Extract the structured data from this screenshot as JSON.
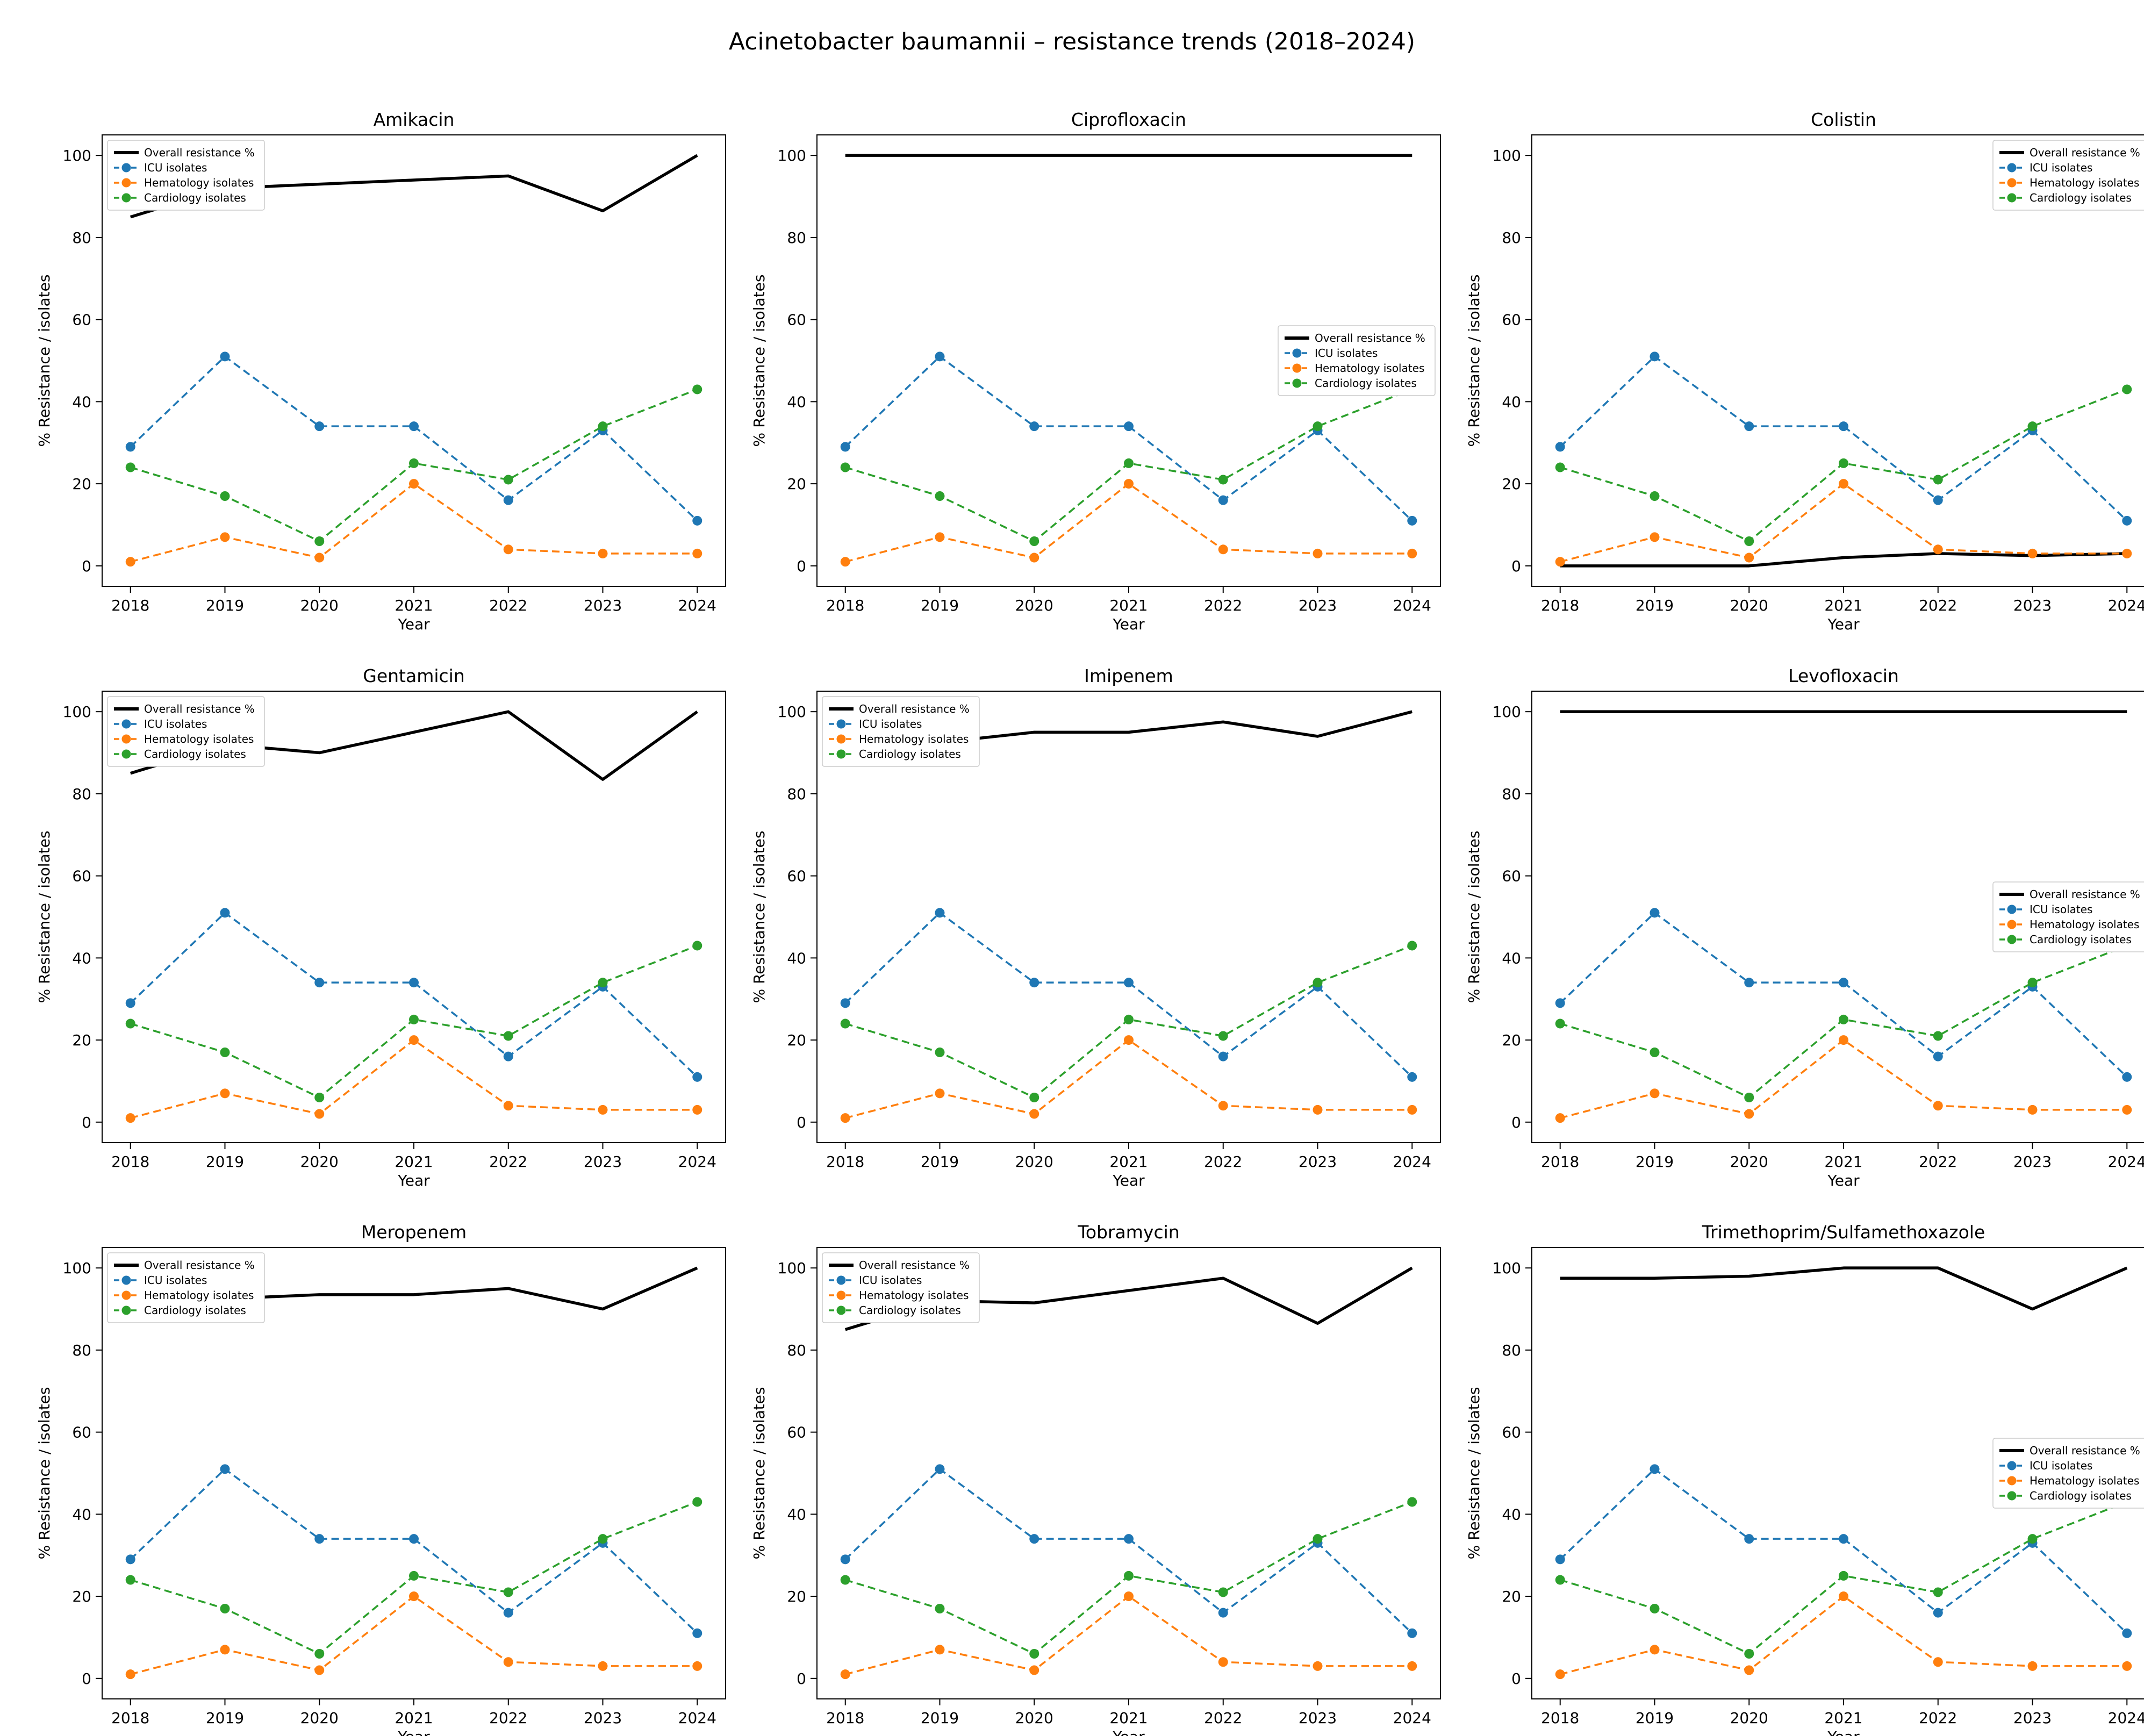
{
  "figure_title": "Acinetobacter baumannii – resistance trends (2018–2024)",
  "axis": {
    "xlabel": "Year",
    "ylabel": "% Resistance / isolates",
    "xticks": [
      2018,
      2019,
      2020,
      2021,
      2022,
      2023,
      2024
    ],
    "yticks": [
      0,
      20,
      40,
      60,
      80,
      100
    ],
    "xlim": [
      2017.7,
      2024.3
    ],
    "ylim": [
      -5,
      105
    ],
    "grid": false
  },
  "legend": {
    "entries": [
      "Overall resistance %",
      "ICU isolates",
      "Hematology isolates",
      "Cardiology isolates"
    ]
  },
  "colors": {
    "overall": "#000000",
    "icu": "#1f77b4",
    "hematology": "#ff7f0e",
    "cardiology": "#2ca02c"
  },
  "chart_data": [
    {
      "type": "line",
      "title": "Amikacin",
      "legend_loc": "upper left",
      "x": [
        2018,
        2019,
        2020,
        2021,
        2022,
        2023,
        2024
      ],
      "series": [
        {
          "name": "Overall resistance %",
          "color": "#000000",
          "style": "solid",
          "values": [
            85,
            92,
            93,
            94,
            95,
            86.5,
            100
          ]
        },
        {
          "name": "ICU isolates",
          "color": "#1f77b4",
          "style": "dashed",
          "values": [
            29,
            51,
            34,
            34,
            16,
            33,
            11
          ]
        },
        {
          "name": "Hematology isolates",
          "color": "#ff7f0e",
          "style": "dashed",
          "values": [
            1,
            7,
            2,
            20,
            4,
            3,
            3
          ]
        },
        {
          "name": "Cardiology isolates",
          "color": "#2ca02c",
          "style": "dashed",
          "values": [
            24,
            17,
            6,
            25,
            21,
            34,
            43
          ]
        }
      ]
    },
    {
      "type": "line",
      "title": "Ciprofloxacin",
      "legend_loc": "center right",
      "x": [
        2018,
        2019,
        2020,
        2021,
        2022,
        2023,
        2024
      ],
      "series": [
        {
          "name": "Overall resistance %",
          "color": "#000000",
          "style": "solid",
          "values": [
            100,
            100,
            100,
            100,
            100,
            100,
            100
          ]
        },
        {
          "name": "ICU isolates",
          "color": "#1f77b4",
          "style": "dashed",
          "values": [
            29,
            51,
            34,
            34,
            16,
            33,
            11
          ]
        },
        {
          "name": "Hematology isolates",
          "color": "#ff7f0e",
          "style": "dashed",
          "values": [
            1,
            7,
            2,
            20,
            4,
            3,
            3
          ]
        },
        {
          "name": "Cardiology isolates",
          "color": "#2ca02c",
          "style": "dashed",
          "values": [
            24,
            17,
            6,
            25,
            21,
            34,
            43
          ]
        }
      ]
    },
    {
      "type": "line",
      "title": "Colistin",
      "legend_loc": "upper right",
      "x": [
        2018,
        2019,
        2020,
        2021,
        2022,
        2023,
        2024
      ],
      "series": [
        {
          "name": "Overall resistance %",
          "color": "#000000",
          "style": "solid",
          "values": [
            0,
            0,
            0,
            2,
            3,
            2.5,
            3
          ]
        },
        {
          "name": "ICU isolates",
          "color": "#1f77b4",
          "style": "dashed",
          "values": [
            29,
            51,
            34,
            34,
            16,
            33,
            11
          ]
        },
        {
          "name": "Hematology isolates",
          "color": "#ff7f0e",
          "style": "dashed",
          "values": [
            1,
            7,
            2,
            20,
            4,
            3,
            3
          ]
        },
        {
          "name": "Cardiology isolates",
          "color": "#2ca02c",
          "style": "dashed",
          "values": [
            24,
            17,
            6,
            25,
            21,
            34,
            43
          ]
        }
      ]
    },
    {
      "type": "line",
      "title": "Gentamicin",
      "legend_loc": "upper left",
      "x": [
        2018,
        2019,
        2020,
        2021,
        2022,
        2023,
        2024
      ],
      "series": [
        {
          "name": "Overall resistance %",
          "color": "#000000",
          "style": "solid",
          "values": [
            85,
            92,
            90,
            95,
            100,
            83.5,
            100
          ]
        },
        {
          "name": "ICU isolates",
          "color": "#1f77b4",
          "style": "dashed",
          "values": [
            29,
            51,
            34,
            34,
            16,
            33,
            11
          ]
        },
        {
          "name": "Hematology isolates",
          "color": "#ff7f0e",
          "style": "dashed",
          "values": [
            1,
            7,
            2,
            20,
            4,
            3,
            3
          ]
        },
        {
          "name": "Cardiology isolates",
          "color": "#2ca02c",
          "style": "dashed",
          "values": [
            24,
            17,
            6,
            25,
            21,
            34,
            43
          ]
        }
      ]
    },
    {
      "type": "line",
      "title": "Imipenem",
      "legend_loc": "upper left",
      "x": [
        2018,
        2019,
        2020,
        2021,
        2022,
        2023,
        2024
      ],
      "series": [
        {
          "name": "Overall resistance %",
          "color": "#000000",
          "style": "solid",
          "values": [
            95,
            92.5,
            95,
            95,
            97.5,
            94,
            100
          ]
        },
        {
          "name": "ICU isolates",
          "color": "#1f77b4",
          "style": "dashed",
          "values": [
            29,
            51,
            34,
            34,
            16,
            33,
            11
          ]
        },
        {
          "name": "Hematology isolates",
          "color": "#ff7f0e",
          "style": "dashed",
          "values": [
            1,
            7,
            2,
            20,
            4,
            3,
            3
          ]
        },
        {
          "name": "Cardiology isolates",
          "color": "#2ca02c",
          "style": "dashed",
          "values": [
            24,
            17,
            6,
            25,
            21,
            34,
            43
          ]
        }
      ]
    },
    {
      "type": "line",
      "title": "Levofloxacin",
      "legend_loc": "center right",
      "x": [
        2018,
        2019,
        2020,
        2021,
        2022,
        2023,
        2024
      ],
      "series": [
        {
          "name": "Overall resistance %",
          "color": "#000000",
          "style": "solid",
          "values": [
            100,
            100,
            100,
            100,
            100,
            100,
            100
          ]
        },
        {
          "name": "ICU isolates",
          "color": "#1f77b4",
          "style": "dashed",
          "values": [
            29,
            51,
            34,
            34,
            16,
            33,
            11
          ]
        },
        {
          "name": "Hematology isolates",
          "color": "#ff7f0e",
          "style": "dashed",
          "values": [
            1,
            7,
            2,
            20,
            4,
            3,
            3
          ]
        },
        {
          "name": "Cardiology isolates",
          "color": "#2ca02c",
          "style": "dashed",
          "values": [
            24,
            17,
            6,
            25,
            21,
            34,
            43
          ]
        }
      ]
    },
    {
      "type": "line",
      "title": "Meropenem",
      "legend_loc": "upper left",
      "x": [
        2018,
        2019,
        2020,
        2021,
        2022,
        2023,
        2024
      ],
      "series": [
        {
          "name": "Overall resistance %",
          "color": "#000000",
          "style": "solid",
          "values": [
            95,
            92.5,
            93.5,
            93.5,
            95,
            90,
            100
          ]
        },
        {
          "name": "ICU isolates",
          "color": "#1f77b4",
          "style": "dashed",
          "values": [
            29,
            51,
            34,
            34,
            16,
            33,
            11
          ]
        },
        {
          "name": "Hematology isolates",
          "color": "#ff7f0e",
          "style": "dashed",
          "values": [
            1,
            7,
            2,
            20,
            4,
            3,
            3
          ]
        },
        {
          "name": "Cardiology isolates",
          "color": "#2ca02c",
          "style": "dashed",
          "values": [
            24,
            17,
            6,
            25,
            21,
            34,
            43
          ]
        }
      ]
    },
    {
      "type": "line",
      "title": "Tobramycin",
      "legend_loc": "upper left",
      "x": [
        2018,
        2019,
        2020,
        2021,
        2022,
        2023,
        2024
      ],
      "series": [
        {
          "name": "Overall resistance %",
          "color": "#000000",
          "style": "solid",
          "values": [
            85,
            92,
            91.5,
            94.5,
            97.5,
            86.5,
            100
          ]
        },
        {
          "name": "ICU isolates",
          "color": "#1f77b4",
          "style": "dashed",
          "values": [
            29,
            51,
            34,
            34,
            16,
            33,
            11
          ]
        },
        {
          "name": "Hematology isolates",
          "color": "#ff7f0e",
          "style": "dashed",
          "values": [
            1,
            7,
            2,
            20,
            4,
            3,
            3
          ]
        },
        {
          "name": "Cardiology isolates",
          "color": "#2ca02c",
          "style": "dashed",
          "values": [
            24,
            17,
            6,
            25,
            21,
            34,
            43
          ]
        }
      ]
    },
    {
      "type": "line",
      "title": "Trimethoprim/Sulfamethoxazole",
      "legend_loc": "center right",
      "x": [
        2018,
        2019,
        2020,
        2021,
        2022,
        2023,
        2024
      ],
      "series": [
        {
          "name": "Overall resistance %",
          "color": "#000000",
          "style": "solid",
          "values": [
            97.5,
            97.5,
            98,
            100,
            100,
            90,
            100
          ]
        },
        {
          "name": "ICU isolates",
          "color": "#1f77b4",
          "style": "dashed",
          "values": [
            29,
            51,
            34,
            34,
            16,
            33,
            11
          ]
        },
        {
          "name": "Hematology isolates",
          "color": "#ff7f0e",
          "style": "dashed",
          "values": [
            1,
            7,
            2,
            20,
            4,
            3,
            3
          ]
        },
        {
          "name": "Cardiology isolates",
          "color": "#2ca02c",
          "style": "dashed",
          "values": [
            24,
            17,
            6,
            25,
            21,
            34,
            43
          ]
        }
      ]
    }
  ]
}
